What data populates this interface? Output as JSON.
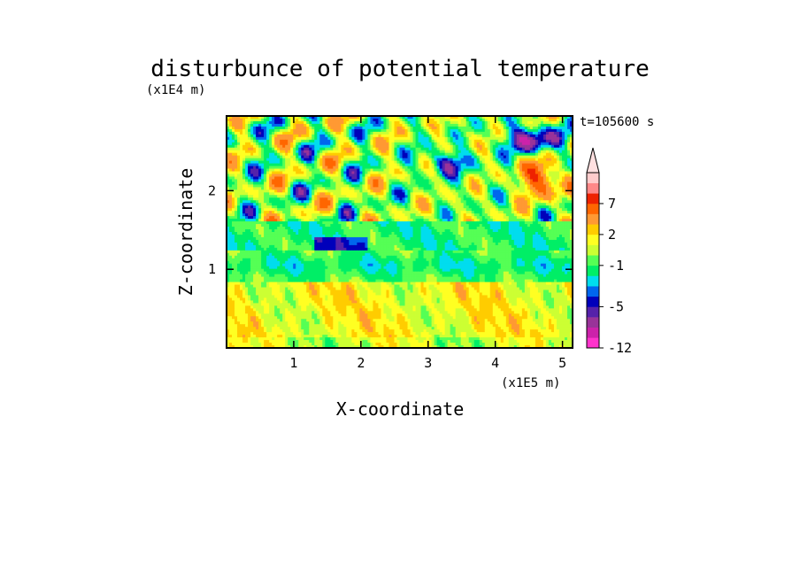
{
  "chart_data": {
    "type": "heatmap",
    "title": "disturbunce of potential temperature",
    "xlabel": "X-coordinate",
    "ylabel": "Z-coordinate",
    "x_unit": "(x1E5 m)",
    "y_unit": "(x1E4 m)",
    "time_label": "t=105600 s",
    "xlim": [
      0,
      5.15
    ],
    "ylim": [
      0,
      2.95
    ],
    "x_ticks": [
      1,
      2,
      3,
      4,
      5
    ],
    "y_ticks": [
      1,
      2
    ],
    "colorbar": {
      "levels": [
        -12,
        -10,
        -8,
        -6,
        -5,
        -4,
        -3,
        -2,
        -1,
        0,
        1,
        2,
        3,
        5,
        7,
        9,
        11
      ],
      "tick_labels": [
        "-12",
        "-5",
        "-1",
        "2",
        "7"
      ],
      "tick_values": [
        -12,
        -5,
        -1,
        2,
        7
      ],
      "colors": [
        "#ff33cc",
        "#cc22aa",
        "#993399",
        "#5522aa",
        "#0000bb",
        "#0066ee",
        "#00ddee",
        "#00ee66",
        "#55ff55",
        "#ccff33",
        "#ffff22",
        "#ffcc00",
        "#ff9933",
        "#ff6600",
        "#ee2200",
        "#ff8888",
        "#ffcccc"
      ],
      "extend_max": true
    },
    "note_field": "values in colorbar levels; field is a spatially varying contour fill"
  }
}
